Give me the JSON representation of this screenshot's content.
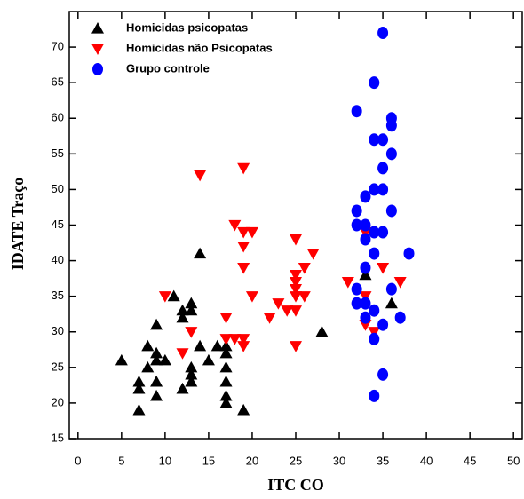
{
  "chart_data": {
    "type": "scatter",
    "x_label": "ITC CO",
    "y_label": "IDATE Traço",
    "xlim": [
      -1,
      51
    ],
    "ylim": [
      15,
      75
    ],
    "xticks": [
      0,
      5,
      10,
      15,
      20,
      25,
      30,
      35,
      40,
      45,
      50
    ],
    "yticks": [
      15,
      20,
      25,
      30,
      35,
      40,
      45,
      50,
      55,
      60,
      65,
      70
    ],
    "legend": "upper left",
    "series": [
      {
        "name": "Homicidas psicopatas",
        "color": "#000000",
        "marker": "triangle-up",
        "x": [
          5,
          7,
          7,
          7,
          8,
          8,
          9,
          9,
          9,
          9,
          9,
          10,
          11,
          12,
          12,
          12,
          13,
          13,
          13,
          13,
          13,
          14,
          14,
          15,
          16,
          17,
          17,
          17,
          17,
          17,
          17,
          19,
          28,
          33,
          36
        ],
        "values": [
          26,
          19,
          22,
          23,
          25,
          28,
          21,
          23,
          26,
          27,
          31,
          26,
          35,
          22,
          32,
          33,
          23,
          24,
          25,
          33,
          34,
          28,
          41,
          26,
          28,
          20,
          21,
          23,
          25,
          27,
          28,
          19,
          30,
          38,
          34
        ]
      },
      {
        "name": "Homicidas não Psicopatas",
        "color": "#ff0000",
        "marker": "triangle-down",
        "x": [
          10,
          12,
          13,
          14,
          17,
          17,
          18,
          18,
          19,
          19,
          19,
          19,
          19,
          19,
          20,
          20,
          22,
          23,
          24,
          25,
          25,
          25,
          25,
          25,
          25,
          25,
          26,
          26,
          27,
          31,
          33,
          33,
          33,
          34,
          35,
          37
        ],
        "values": [
          35,
          27,
          30,
          52,
          32,
          29,
          45,
          29,
          53,
          44,
          42,
          39,
          29,
          28,
          44,
          35,
          32,
          34,
          33,
          43,
          38,
          37,
          36,
          35,
          33,
          28,
          39,
          35,
          41,
          37,
          44,
          35,
          31,
          30,
          39,
          37
        ]
      },
      {
        "name": "Grupo controle",
        "color": "#0000ff",
        "marker": "circle",
        "x": [
          35,
          34,
          32,
          36,
          36,
          34,
          35,
          36,
          35,
          33,
          34,
          35,
          32,
          36,
          32,
          33,
          34,
          35,
          33,
          34,
          38,
          33,
          32,
          36,
          32,
          33,
          33,
          34,
          35,
          37,
          34,
          35,
          34
        ],
        "values": [
          72,
          65,
          61,
          60,
          59,
          57,
          57,
          55,
          53,
          49,
          50,
          50,
          47,
          47,
          45,
          45,
          44,
          44,
          43,
          41,
          41,
          39,
          36,
          36,
          34,
          34,
          32,
          33,
          31,
          32,
          29,
          24,
          21
        ]
      }
    ]
  }
}
